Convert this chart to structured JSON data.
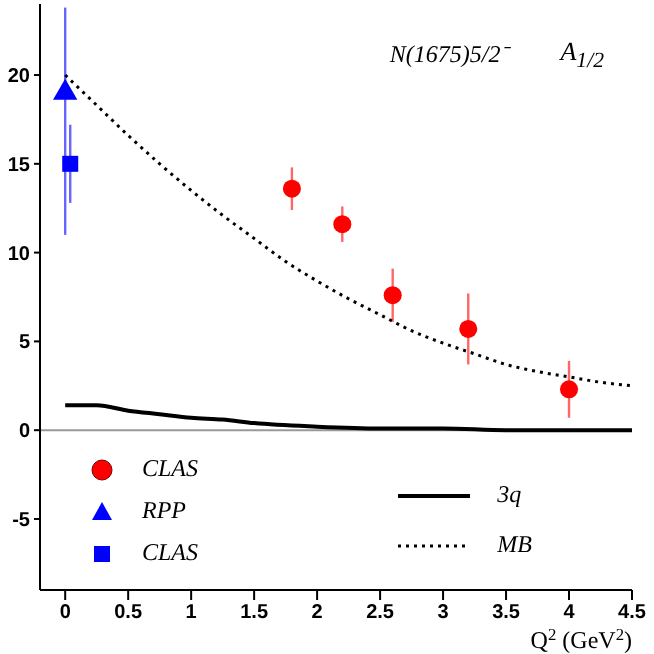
{
  "chart_data": {
    "type": "scatter",
    "title": "N(1675)5/2⁻",
    "subtitle": "A$_{1/2}$",
    "xlabel": "Q$^{2}$ (GeV$^{2}$)",
    "xlim": [
      -0.2,
      4.5
    ],
    "xticks": [
      0,
      0.5,
      1,
      1.5,
      2,
      2.5,
      3,
      3.5,
      4,
      4.5
    ],
    "ylim": [
      -9,
      24
    ],
    "yticks": [
      -5,
      0,
      5,
      10,
      15,
      20
    ],
    "grid": false,
    "legend": "bottom",
    "ref_lines": [
      {
        "axis": "y",
        "value": 0,
        "color": "#999999"
      }
    ],
    "series": [
      {
        "name": "CLAS",
        "marker": "circle",
        "color": "#ff0000",
        "x": [
          1.8,
          2.2,
          2.6,
          3.2,
          4.0
        ],
        "values": [
          13.6,
          11.6,
          7.6,
          5.7,
          2.3
        ],
        "errors": [
          1.2,
          1.0,
          1.5,
          2.0,
          1.6
        ]
      },
      {
        "name": "RPP",
        "marker": "triangle",
        "color": "#0000ff",
        "x": [
          0
        ],
        "values": [
          19
        ],
        "errors": [
          [
            11,
            23.8
          ]
        ]
      },
      {
        "name": "CLAS",
        "marker": "square",
        "color": "#0000ff",
        "x": [
          0.04
        ],
        "values": [
          15
        ],
        "errors": [
          2.2
        ]
      },
      {
        "name": "3q",
        "type": "line",
        "marker": "none",
        "line_style": "solid",
        "color": "#000000",
        "x": [
          0,
          0.25,
          0.5,
          0.75,
          1,
          1.25,
          1.5,
          2,
          2.5,
          3,
          3.5,
          4,
          4.5
        ],
        "values": [
          1.4,
          1.4,
          1.1,
          0.9,
          0.7,
          0.6,
          0.4,
          0.2,
          0.1,
          0.1,
          0,
          0,
          0
        ]
      },
      {
        "name": "MB",
        "type": "line",
        "marker": "none",
        "line_style": "dotted",
        "color": "#000000",
        "x": [
          0,
          0.25,
          0.5,
          0.75,
          1,
          1.25,
          1.5,
          1.75,
          2,
          2.25,
          2.5,
          2.75,
          3,
          3.25,
          3.5,
          3.75,
          4,
          4.25,
          4.5
        ],
        "values": [
          20,
          18.3,
          16.6,
          15.0,
          13.5,
          12.1,
          10.8,
          9.5,
          8.4,
          7.4,
          6.5,
          5.6,
          4.9,
          4.3,
          3.7,
          3.3,
          3.0,
          2.7,
          2.5
        ]
      }
    ]
  }
}
